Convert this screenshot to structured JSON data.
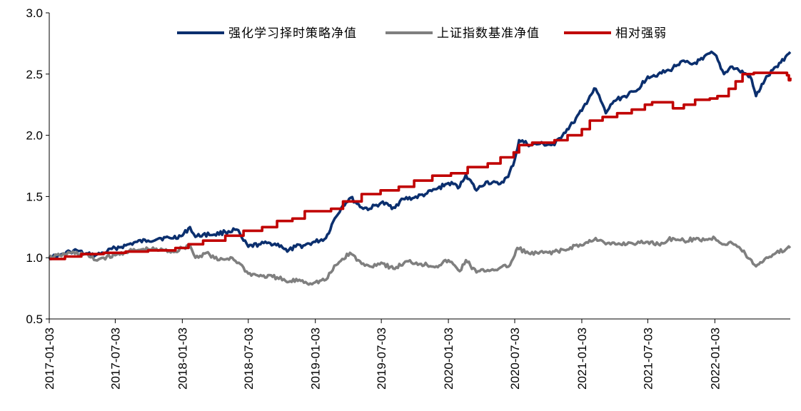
{
  "chart_data": {
    "type": "line",
    "title": "",
    "xlabel": "",
    "ylabel": "",
    "ylim": [
      0.5,
      3.0
    ],
    "yticks": [
      "0.5",
      "1.0",
      "1.5",
      "2.0",
      "2.5",
      "3.0"
    ],
    "xticks": [
      "2017-01-03",
      "2017-07-03",
      "2018-01-03",
      "2018-07-03",
      "2019-01-03",
      "2019-07-03",
      "2020-01-03",
      "2020-07-03",
      "2021-01-03",
      "2021-07-03",
      "2022-01-03"
    ],
    "x_end": "2022-07-29",
    "grid": false,
    "legend_position": "top",
    "series": [
      {
        "name": "强化学习择时策略净值",
        "color": "#0b2f6e",
        "points": [
          [
            "2017-01-03",
            1.0
          ],
          [
            "2017-02-01",
            1.02
          ],
          [
            "2017-03-01",
            1.05
          ],
          [
            "2017-03-20",
            1.06
          ],
          [
            "2017-04-10",
            1.03
          ],
          [
            "2017-05-10",
            1.02
          ],
          [
            "2017-06-01",
            1.04
          ],
          [
            "2017-07-03",
            1.08
          ],
          [
            "2017-08-01",
            1.1
          ],
          [
            "2017-09-01",
            1.13
          ],
          [
            "2017-10-01",
            1.14
          ],
          [
            "2017-11-01",
            1.16
          ],
          [
            "2017-12-01",
            1.16
          ],
          [
            "2018-01-03",
            1.18
          ],
          [
            "2018-01-24",
            1.25
          ],
          [
            "2018-02-08",
            1.17
          ],
          [
            "2018-03-01",
            1.19
          ],
          [
            "2018-04-01",
            1.19
          ],
          [
            "2018-05-01",
            1.21
          ],
          [
            "2018-06-01",
            1.23
          ],
          [
            "2018-06-20",
            1.14
          ],
          [
            "2018-07-03",
            1.09
          ],
          [
            "2018-08-01",
            1.11
          ],
          [
            "2018-09-01",
            1.12
          ],
          [
            "2018-10-01",
            1.1
          ],
          [
            "2018-10-18",
            1.05
          ],
          [
            "2018-11-10",
            1.09
          ],
          [
            "2018-12-01",
            1.1
          ],
          [
            "2019-01-03",
            1.13
          ],
          [
            "2019-02-01",
            1.16
          ],
          [
            "2019-02-25",
            1.32
          ],
          [
            "2019-03-20",
            1.43
          ],
          [
            "2019-04-10",
            1.49
          ],
          [
            "2019-05-10",
            1.41
          ],
          [
            "2019-06-01",
            1.4
          ],
          [
            "2019-07-03",
            1.45
          ],
          [
            "2019-08-05",
            1.41
          ],
          [
            "2019-09-01",
            1.48
          ],
          [
            "2019-10-01",
            1.49
          ],
          [
            "2019-11-01",
            1.52
          ],
          [
            "2019-12-01",
            1.56
          ],
          [
            "2020-01-03",
            1.61
          ],
          [
            "2020-02-03",
            1.58
          ],
          [
            "2020-02-20",
            1.68
          ],
          [
            "2020-03-20",
            1.55
          ],
          [
            "2020-04-15",
            1.62
          ],
          [
            "2020-05-20",
            1.6
          ],
          [
            "2020-06-15",
            1.66
          ],
          [
            "2020-07-03",
            1.8
          ],
          [
            "2020-07-15",
            1.96
          ],
          [
            "2020-08-15",
            1.92
          ],
          [
            "2020-09-10",
            1.93
          ],
          [
            "2020-10-20",
            1.92
          ],
          [
            "2020-11-15",
            2.02
          ],
          [
            "2020-12-10",
            2.1
          ],
          [
            "2021-01-03",
            2.2
          ],
          [
            "2021-01-25",
            2.32
          ],
          [
            "2021-02-10",
            2.38
          ],
          [
            "2021-03-10",
            2.18
          ],
          [
            "2021-04-01",
            2.28
          ],
          [
            "2021-05-01",
            2.32
          ],
          [
            "2021-06-01",
            2.36
          ],
          [
            "2021-07-03",
            2.48
          ],
          [
            "2021-08-01",
            2.5
          ],
          [
            "2021-09-01",
            2.53
          ],
          [
            "2021-10-01",
            2.6
          ],
          [
            "2021-11-01",
            2.58
          ],
          [
            "2021-12-01",
            2.62
          ],
          [
            "2021-12-20",
            2.67
          ],
          [
            "2022-01-03",
            2.66
          ],
          [
            "2022-01-28",
            2.5
          ],
          [
            "2022-02-15",
            2.56
          ],
          [
            "2022-03-10",
            2.53
          ],
          [
            "2022-04-10",
            2.48
          ],
          [
            "2022-04-26",
            2.32
          ],
          [
            "2022-05-20",
            2.45
          ],
          [
            "2022-06-20",
            2.56
          ],
          [
            "2022-07-29",
            2.68
          ]
        ]
      },
      {
        "name": "上证指数基准净值",
        "color": "#7f7f7f",
        "points": [
          [
            "2017-01-03",
            1.0
          ],
          [
            "2017-02-01",
            1.02
          ],
          [
            "2017-03-01",
            1.04
          ],
          [
            "2017-04-10",
            1.03
          ],
          [
            "2017-05-10",
            0.98
          ],
          [
            "2017-06-01",
            1.0
          ],
          [
            "2017-07-03",
            1.02
          ],
          [
            "2017-08-01",
            1.05
          ],
          [
            "2017-09-01",
            1.06
          ],
          [
            "2017-10-01",
            1.07
          ],
          [
            "2017-11-15",
            1.06
          ],
          [
            "2017-12-15",
            1.05
          ],
          [
            "2018-01-03",
            1.08
          ],
          [
            "2018-01-24",
            1.1
          ],
          [
            "2018-02-08",
            1.0
          ],
          [
            "2018-03-10",
            1.04
          ],
          [
            "2018-04-10",
            0.98
          ],
          [
            "2018-05-20",
            1.0
          ],
          [
            "2018-06-20",
            0.92
          ],
          [
            "2018-07-03",
            0.87
          ],
          [
            "2018-08-10",
            0.85
          ],
          [
            "2018-09-20",
            0.84
          ],
          [
            "2018-10-18",
            0.8
          ],
          [
            "2018-11-20",
            0.82
          ],
          [
            "2018-12-20",
            0.79
          ],
          [
            "2019-01-03",
            0.8
          ],
          [
            "2019-02-01",
            0.82
          ],
          [
            "2019-03-01",
            0.94
          ],
          [
            "2019-04-08",
            1.04
          ],
          [
            "2019-05-10",
            0.95
          ],
          [
            "2019-06-01",
            0.93
          ],
          [
            "2019-07-03",
            0.96
          ],
          [
            "2019-08-05",
            0.91
          ],
          [
            "2019-09-15",
            0.97
          ],
          [
            "2019-10-20",
            0.95
          ],
          [
            "2019-12-01",
            0.93
          ],
          [
            "2020-01-03",
            0.98
          ],
          [
            "2020-02-03",
            0.89
          ],
          [
            "2020-02-20",
            0.98
          ],
          [
            "2020-03-20",
            0.88
          ],
          [
            "2020-04-20",
            0.9
          ],
          [
            "2020-05-20",
            0.91
          ],
          [
            "2020-06-20",
            0.94
          ],
          [
            "2020-07-03",
            1.02
          ],
          [
            "2020-07-10",
            1.08
          ],
          [
            "2020-08-15",
            1.03
          ],
          [
            "2020-09-20",
            1.04
          ],
          [
            "2020-10-20",
            1.05
          ],
          [
            "2020-11-20",
            1.06
          ],
          [
            "2020-12-15",
            1.1
          ],
          [
            "2021-01-03",
            1.1
          ],
          [
            "2021-02-10",
            1.16
          ],
          [
            "2021-03-10",
            1.11
          ],
          [
            "2021-04-10",
            1.11
          ],
          [
            "2021-05-20",
            1.12
          ],
          [
            "2021-06-20",
            1.12
          ],
          [
            "2021-07-03",
            1.13
          ],
          [
            "2021-08-01",
            1.11
          ],
          [
            "2021-09-10",
            1.16
          ],
          [
            "2021-10-10",
            1.14
          ],
          [
            "2021-11-10",
            1.15
          ],
          [
            "2021-12-10",
            1.15
          ],
          [
            "2022-01-03",
            1.16
          ],
          [
            "2022-01-28",
            1.11
          ],
          [
            "2022-02-15",
            1.13
          ],
          [
            "2022-03-15",
            1.07
          ],
          [
            "2022-04-26",
            0.93
          ],
          [
            "2022-05-20",
            0.99
          ],
          [
            "2022-06-20",
            1.04
          ],
          [
            "2022-07-29",
            1.08
          ]
        ]
      },
      {
        "name": "相对强弱",
        "color": "#c00000",
        "step": true,
        "points": [
          [
            "2017-01-03",
            0.99
          ],
          [
            "2017-02-15",
            1.01
          ],
          [
            "2017-04-01",
            1.03
          ],
          [
            "2017-06-01",
            1.04
          ],
          [
            "2017-08-01",
            1.05
          ],
          [
            "2017-10-01",
            1.06
          ],
          [
            "2017-12-15",
            1.08
          ],
          [
            "2018-01-20",
            1.11
          ],
          [
            "2018-03-01",
            1.14
          ],
          [
            "2018-05-01",
            1.18
          ],
          [
            "2018-06-20",
            1.22
          ],
          [
            "2018-08-10",
            1.25
          ],
          [
            "2018-09-20",
            1.3
          ],
          [
            "2018-11-01",
            1.32
          ],
          [
            "2018-12-05",
            1.38
          ],
          [
            "2019-01-03",
            1.38
          ],
          [
            "2019-02-15",
            1.4
          ],
          [
            "2019-03-20",
            1.46
          ],
          [
            "2019-05-10",
            1.52
          ],
          [
            "2019-07-01",
            1.55
          ],
          [
            "2019-08-20",
            1.58
          ],
          [
            "2019-10-01",
            1.63
          ],
          [
            "2019-11-20",
            1.67
          ],
          [
            "2020-01-10",
            1.69
          ],
          [
            "2020-02-25",
            1.74
          ],
          [
            "2020-04-20",
            1.77
          ],
          [
            "2020-05-25",
            1.82
          ],
          [
            "2020-06-30",
            1.86
          ],
          [
            "2020-07-15",
            1.92
          ],
          [
            "2020-08-20",
            1.94
          ],
          [
            "2020-10-20",
            1.96
          ],
          [
            "2020-11-25",
            2.0
          ],
          [
            "2021-01-03",
            2.05
          ],
          [
            "2021-01-25",
            2.12
          ],
          [
            "2021-03-01",
            2.15
          ],
          [
            "2021-04-10",
            2.18
          ],
          [
            "2021-05-20",
            2.21
          ],
          [
            "2021-06-25",
            2.25
          ],
          [
            "2021-07-15",
            2.27
          ],
          [
            "2021-09-10",
            2.22
          ],
          [
            "2021-10-10",
            2.25
          ],
          [
            "2021-11-10",
            2.29
          ],
          [
            "2021-12-20",
            2.3
          ],
          [
            "2022-01-10",
            2.32
          ],
          [
            "2022-02-10",
            2.38
          ],
          [
            "2022-03-01",
            2.44
          ],
          [
            "2022-03-20",
            2.5
          ],
          [
            "2022-04-20",
            2.51
          ],
          [
            "2022-07-20",
            2.49
          ],
          [
            "2022-07-25",
            2.45
          ],
          [
            "2022-07-29",
            2.47
          ]
        ]
      }
    ]
  }
}
